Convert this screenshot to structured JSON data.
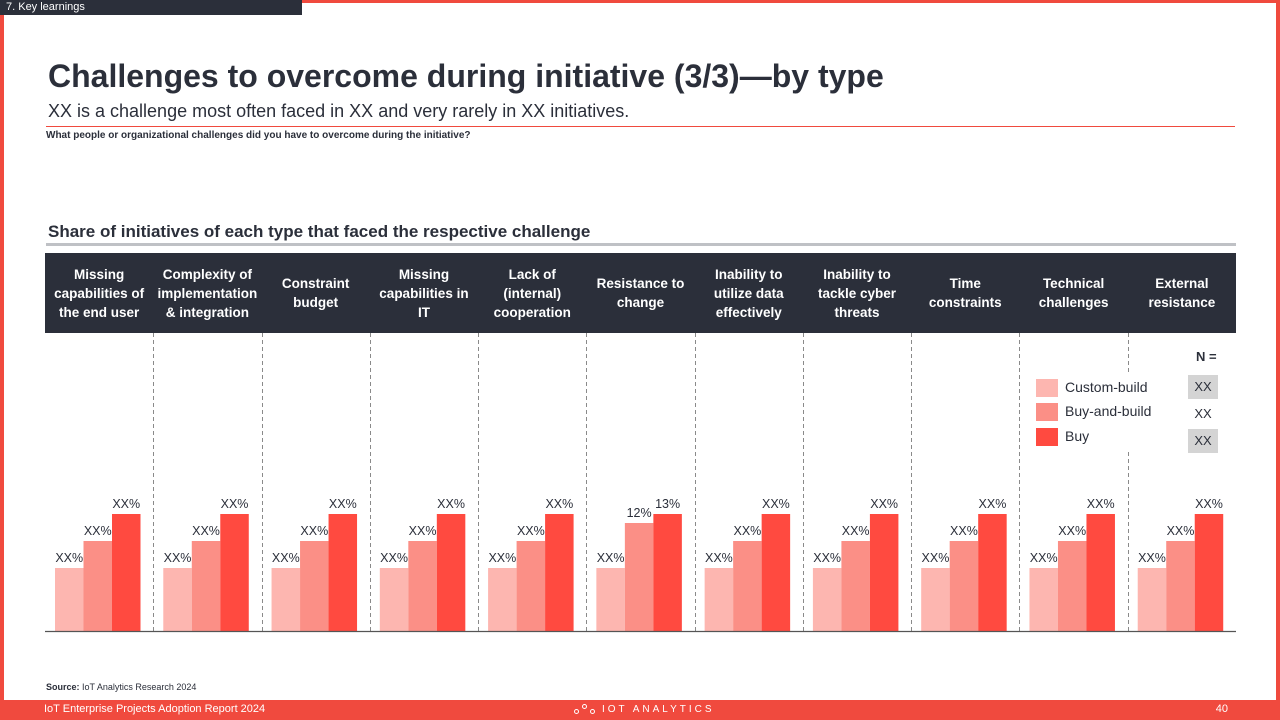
{
  "section_tag": "7. Key learnings",
  "title": "Challenges to overcome during initiative (3/3)—by type",
  "subtitle": "XX is a challenge most often faced in XX and very rarely in XX initiatives.",
  "question": "What people or organizational  challenges did you have to overcome during the initiative?",
  "chart_title": "Share of initiatives of each type that faced the respective challenge",
  "colors": {
    "custom_build": "#fdb6b0",
    "buy_and_build": "#fb8f86",
    "buy": "#ff4a40",
    "header_band": "#2b2f3a",
    "accent": "#f04a3e"
  },
  "chart_data": {
    "type": "bar",
    "categories": [
      "Missing capabilities of the end user",
      "Complexity of implementation & integration",
      "Constraint budget",
      "Missing capabilities in IT",
      "Lack of (internal) cooperation",
      "Resistance to change",
      "Inability to utilize data effectively",
      "Inability to tackle cyber threats",
      "Time constraints",
      "Technical challenges",
      "External resistance"
    ],
    "series": [
      {
        "name": "Custom-build",
        "values": [
          7,
          7,
          7,
          7,
          7,
          7,
          7,
          7,
          7,
          7,
          7
        ],
        "labels": [
          "XX%",
          "XX%",
          "XX%",
          "XX%",
          "XX%",
          "XX%",
          "XX%",
          "XX%",
          "XX%",
          "XX%",
          "XX%"
        ]
      },
      {
        "name": "Buy-and-build",
        "values": [
          10,
          10,
          10,
          10,
          10,
          12,
          10,
          10,
          10,
          10,
          10
        ],
        "labels": [
          "XX%",
          "XX%",
          "XX%",
          "XX%",
          "XX%",
          "12%",
          "XX%",
          "XX%",
          "XX%",
          "XX%",
          "XX%"
        ]
      },
      {
        "name": "Buy",
        "values": [
          13,
          13,
          13,
          13,
          13,
          13,
          13,
          13,
          13,
          13,
          13
        ],
        "labels": [
          "XX%",
          "XX%",
          "XX%",
          "XX%",
          "XX%",
          "13%",
          "XX%",
          "XX%",
          "XX%",
          "XX%",
          "XX%"
        ]
      }
    ],
    "ylim": [
      0,
      33
    ],
    "legend": "right",
    "grid": false
  },
  "header_categories": [
    "Missing capabilities of the end user",
    "Complexity of implementation & integration",
    "Constraint budget",
    "Missing capabilities in IT",
    "Lack of (internal) cooperation",
    "Resistance to change",
    "Inability to utilize data effectively",
    "Inability to tackle cyber threats",
    "Time constraints",
    "Technical challenges",
    "External resistance"
  ],
  "n_table": {
    "header": "N =",
    "values": [
      "XX",
      "XX",
      "XX"
    ]
  },
  "source": {
    "label": "Source:",
    "text": "IoT Analytics Research 2024"
  },
  "footer": {
    "report": "IoT Enterprise Projects Adoption Report 2024",
    "logo": "IOT ANALYTICS",
    "page": "40"
  }
}
